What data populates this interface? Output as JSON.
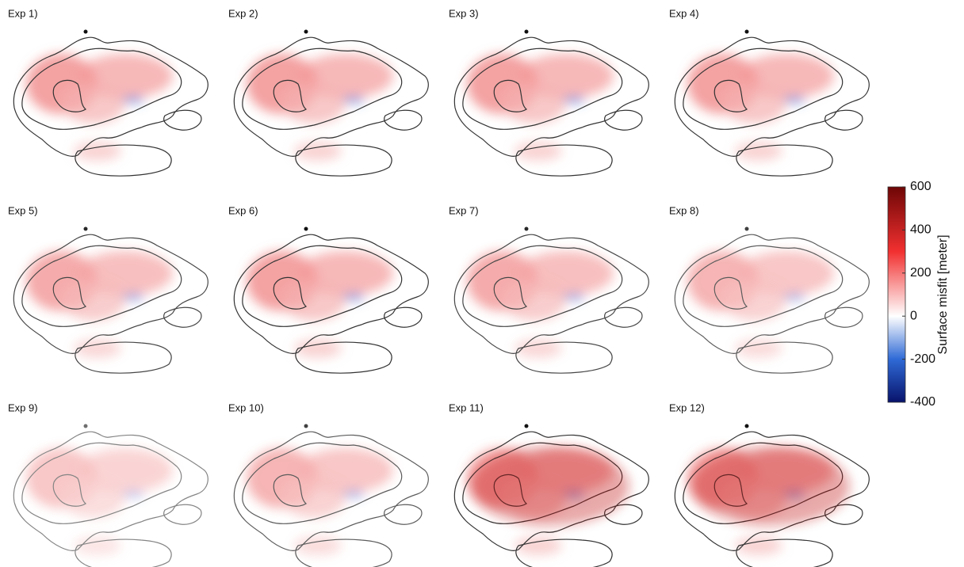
{
  "panels": [
    {
      "label": "Exp 1)"
    },
    {
      "label": "Exp 2)"
    },
    {
      "label": "Exp 3)"
    },
    {
      "label": "Exp 4)"
    },
    {
      "label": "Exp 5)"
    },
    {
      "label": "Exp 6)"
    },
    {
      "label": "Exp 7)"
    },
    {
      "label": "Exp 8)"
    },
    {
      "label": "Exp 9)"
    },
    {
      "label": "Exp 10)"
    },
    {
      "label": "Exp 11)"
    },
    {
      "label": "Exp 12)"
    }
  ],
  "colorbar": {
    "label": "Surface misfit [meter]",
    "ylim": [
      -400,
      600
    ],
    "yticks": [
      -400,
      -200,
      0,
      200,
      400,
      600
    ]
  }
}
